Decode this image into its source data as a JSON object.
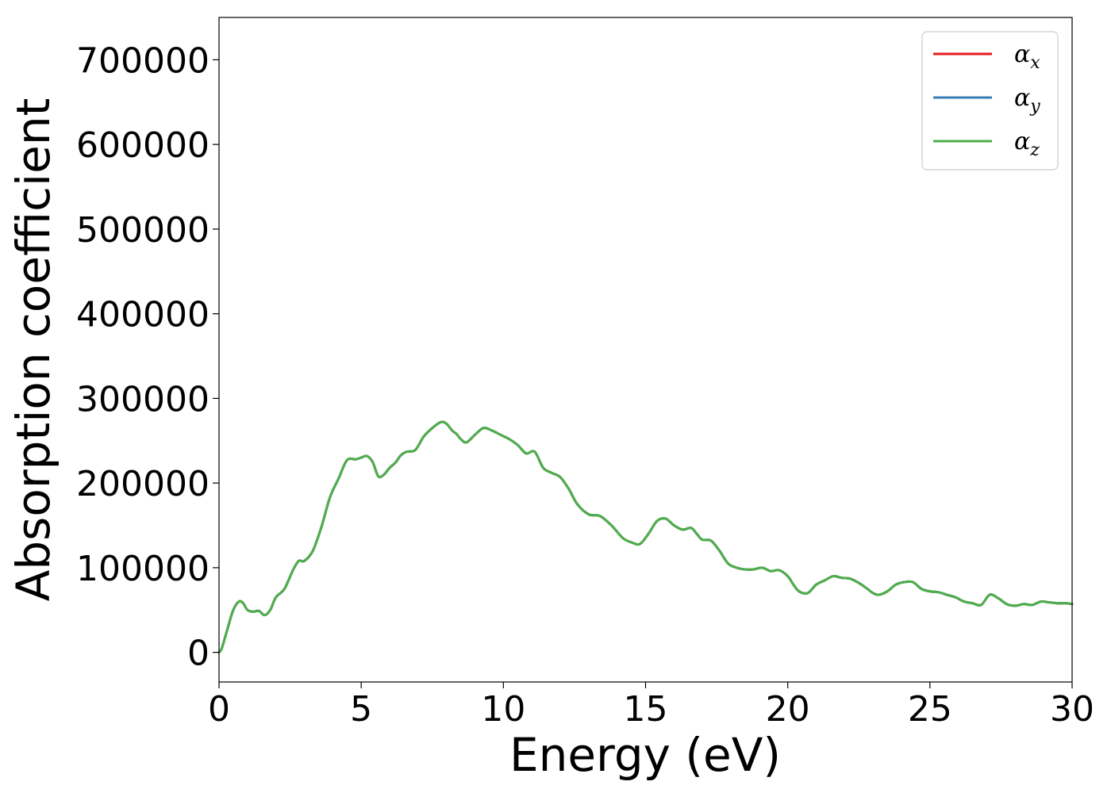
{
  "chart_data": {
    "type": "line",
    "xlabel": "Energy (eV)",
    "ylabel": "Absorption coefficient",
    "xlim": [
      0,
      30
    ],
    "ylim": [
      -35000,
      750000
    ],
    "x_ticks": [
      0,
      5,
      10,
      15,
      20,
      25,
      30
    ],
    "x_tick_labels": [
      "0",
      "5",
      "10",
      "15",
      "20",
      "25",
      "30"
    ],
    "y_ticks": [
      0,
      100000,
      200000,
      300000,
      400000,
      500000,
      600000,
      700000
    ],
    "y_tick_labels": [
      "0",
      "100000",
      "200000",
      "300000",
      "400000",
      "500000",
      "600000",
      "700000"
    ],
    "grid": false,
    "legend_position": "top-right",
    "series": [
      {
        "name": "α",
        "subscript": "x",
        "color": "#e41a1c"
      },
      {
        "name": "α",
        "subscript": "y",
        "color": "#377eb8"
      },
      {
        "name": "α",
        "subscript": "z",
        "color": "#4daf4a"
      }
    ],
    "x": [
      0,
      0.1,
      0.3,
      0.5,
      0.7,
      0.85,
      1.0,
      1.2,
      1.4,
      1.6,
      1.8,
      2.0,
      2.3,
      2.6,
      2.8,
      3.0,
      3.3,
      3.6,
      3.9,
      4.2,
      4.5,
      4.8,
      5.0,
      5.2,
      5.4,
      5.6,
      5.8,
      6.0,
      6.2,
      6.4,
      6.6,
      6.9,
      7.2,
      7.5,
      7.8,
      8.0,
      8.2,
      8.35,
      8.5,
      8.7,
      9.0,
      9.3,
      9.6,
      9.9,
      10.2,
      10.5,
      10.8,
      11.1,
      11.4,
      11.7,
      12.0,
      12.3,
      12.6,
      13.0,
      13.4,
      13.8,
      14.2,
      14.5,
      14.8,
      15.1,
      15.4,
      15.7,
      16.0,
      16.3,
      16.6,
      16.8,
      17.0,
      17.3,
      17.6,
      17.9,
      18.2,
      18.5,
      18.8,
      19.1,
      19.4,
      19.7,
      20.0,
      20.2,
      20.4,
      20.7,
      21.0,
      21.3,
      21.6,
      21.9,
      22.2,
      22.5,
      22.8,
      23.0,
      23.2,
      23.5,
      23.8,
      24.1,
      24.4,
      24.7,
      25.0,
      25.3,
      25.6,
      25.9,
      26.2,
      26.5,
      26.8,
      27.1,
      27.4,
      27.7,
      28.0,
      28.3,
      28.6,
      28.9,
      29.2,
      29.5,
      29.8,
      30.0
    ],
    "y": [
      0,
      5000,
      28000,
      50000,
      60000,
      58000,
      50000,
      48000,
      49000,
      44000,
      50000,
      65000,
      75000,
      97000,
      108000,
      108000,
      120000,
      148000,
      183000,
      205000,
      227000,
      228000,
      230000,
      232000,
      225000,
      208000,
      210000,
      218000,
      224000,
      233000,
      237000,
      239000,
      255000,
      265000,
      272000,
      270000,
      262000,
      258000,
      252000,
      248000,
      257000,
      265000,
      262000,
      257000,
      252000,
      245000,
      235000,
      237000,
      218000,
      212000,
      207000,
      193000,
      175000,
      163000,
      161000,
      150000,
      135000,
      130000,
      128000,
      140000,
      155000,
      158000,
      150000,
      145000,
      147000,
      140000,
      133000,
      132000,
      120000,
      105000,
      100000,
      98000,
      98000,
      100000,
      96000,
      97000,
      90000,
      80000,
      72000,
      70000,
      80000,
      85000,
      90000,
      88000,
      87000,
      82000,
      75000,
      70000,
      68000,
      72000,
      80000,
      83000,
      83000,
      75000,
      72000,
      71000,
      68000,
      65000,
      60000,
      58000,
      56000,
      68000,
      64000,
      57000,
      55000,
      57000,
      56000,
      60000,
      59000,
      58000,
      58000,
      57000
    ]
  }
}
